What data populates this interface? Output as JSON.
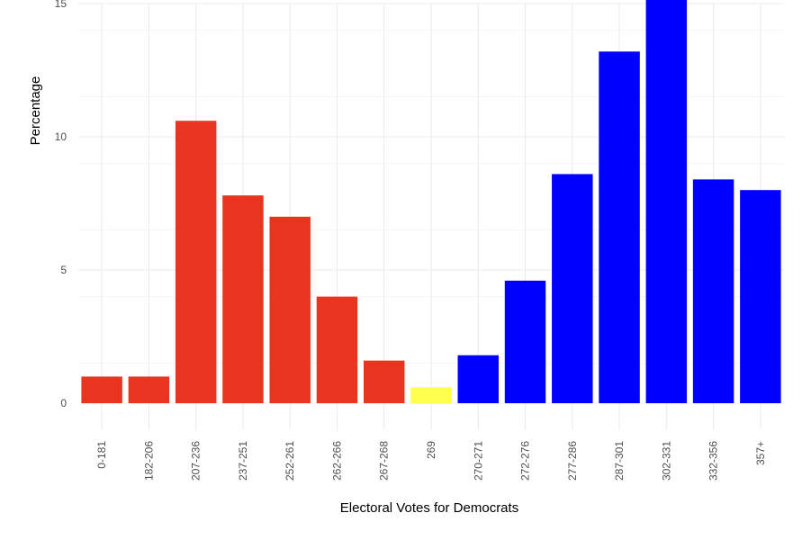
{
  "chart_data": {
    "type": "bar",
    "title": "",
    "xlabel": "Electoral Votes for Democrats",
    "ylabel": "Percentage",
    "ylim": [
      -1,
      15
    ],
    "y_ticks": [
      0,
      5,
      10,
      15
    ],
    "grid": true,
    "categories": [
      "0-181",
      "182-206",
      "207-236",
      "237-251",
      "252-261",
      "262-266",
      "267-268",
      "269",
      "270-271",
      "272-276",
      "277-286",
      "287-301",
      "302-331",
      "332-356",
      "357+"
    ],
    "values": [
      1.0,
      1.0,
      10.6,
      7.8,
      7.0,
      4.0,
      1.6,
      0.6,
      1.8,
      4.6,
      8.6,
      13.2,
      15.4,
      8.4,
      8.0
    ],
    "colors": [
      "#e8351f",
      "#e8351f",
      "#e8351f",
      "#e8351f",
      "#e8351f",
      "#e8351f",
      "#e8351f",
      "#ffff4d",
      "#0000ff",
      "#0000ff",
      "#0000ff",
      "#0000ff",
      "#0000ff",
      "#0000ff",
      "#0000ff"
    ],
    "palette": {
      "republican": "#e8351f",
      "tie": "#ffff4d",
      "democrat": "#0000ff"
    }
  }
}
